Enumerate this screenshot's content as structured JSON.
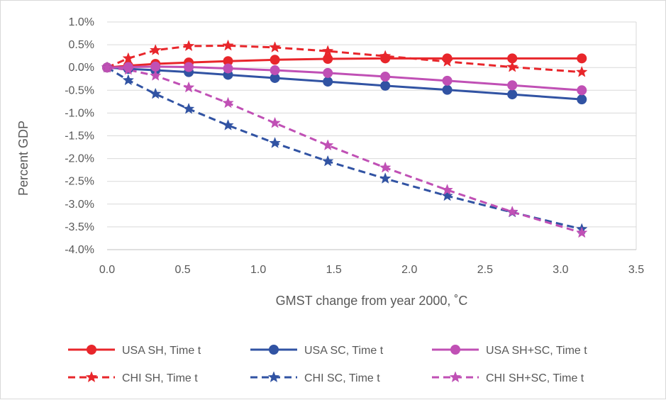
{
  "chart_data": {
    "type": "line",
    "title": "",
    "xlabel": "GMST change from year 2000, ˚C",
    "ylabel": "Percent GDP",
    "xlim": [
      0,
      3.5
    ],
    "ylim": [
      -4.0,
      1.0
    ],
    "x_ticks": [
      "0.0",
      "0.5",
      "1.0",
      "1.5",
      "2.0",
      "2.5",
      "3.0",
      "3.5"
    ],
    "y_ticks": [
      "1.0%",
      "0.5%",
      "0.0%",
      "-0.5%",
      "-1.0%",
      "-1.5%",
      "-2.0%",
      "-2.5%",
      "-3.0%",
      "-3.5%",
      "-4.0%"
    ],
    "x_tick_values": [
      0,
      0.5,
      1.0,
      1.5,
      2.0,
      2.5,
      3.0,
      3.5
    ],
    "y_tick_values": [
      1.0,
      0.5,
      0.0,
      -0.5,
      -1.0,
      -1.5,
      -2.0,
      -2.5,
      -3.0,
      -3.5,
      -4.0
    ],
    "grid": "horizontal",
    "legend_position": "bottom",
    "x": [
      0.0,
      0.14,
      0.32,
      0.54,
      0.8,
      1.11,
      1.46,
      1.84,
      2.25,
      2.68,
      3.14
    ],
    "series": [
      {
        "name": "USA SH, Time t",
        "color": "#e8262b",
        "dash": "solid",
        "marker": "circle",
        "values": [
          0.0,
          0.04,
          0.08,
          0.11,
          0.14,
          0.17,
          0.19,
          0.2,
          0.2,
          0.2,
          0.2
        ]
      },
      {
        "name": "USA SC, Time t",
        "color": "#3153a3",
        "dash": "solid",
        "marker": "circle",
        "values": [
          0.0,
          -0.03,
          -0.06,
          -0.1,
          -0.16,
          -0.23,
          -0.31,
          -0.4,
          -0.49,
          -0.59,
          -0.7
        ]
      },
      {
        "name": "USA SH+SC, Time t",
        "color": "#c050b5",
        "dash": "solid",
        "marker": "circle",
        "values": [
          0.0,
          0.01,
          0.02,
          0.01,
          -0.02,
          -0.06,
          -0.12,
          -0.2,
          -0.29,
          -0.39,
          -0.5
        ]
      },
      {
        "name": "CHI SH, Time t",
        "color": "#e8262b",
        "dash": "dashed",
        "marker": "star",
        "values": [
          0.0,
          0.2,
          0.38,
          0.47,
          0.48,
          0.44,
          0.36,
          0.25,
          0.13,
          0.01,
          -0.1
        ]
      },
      {
        "name": "CHI SC, Time t",
        "color": "#3153a3",
        "dash": "dashed",
        "marker": "star",
        "values": [
          0.0,
          -0.28,
          -0.58,
          -0.91,
          -1.27,
          -1.66,
          -2.06,
          -2.44,
          -2.82,
          -3.18,
          -3.55
        ]
      },
      {
        "name": "CHI SH+SC, Time t",
        "color": "#c050b5",
        "dash": "dashed",
        "marker": "star",
        "values": [
          0.0,
          -0.05,
          -0.18,
          -0.44,
          -0.78,
          -1.22,
          -1.71,
          -2.2,
          -2.69,
          -3.17,
          -3.63
        ]
      }
    ]
  }
}
